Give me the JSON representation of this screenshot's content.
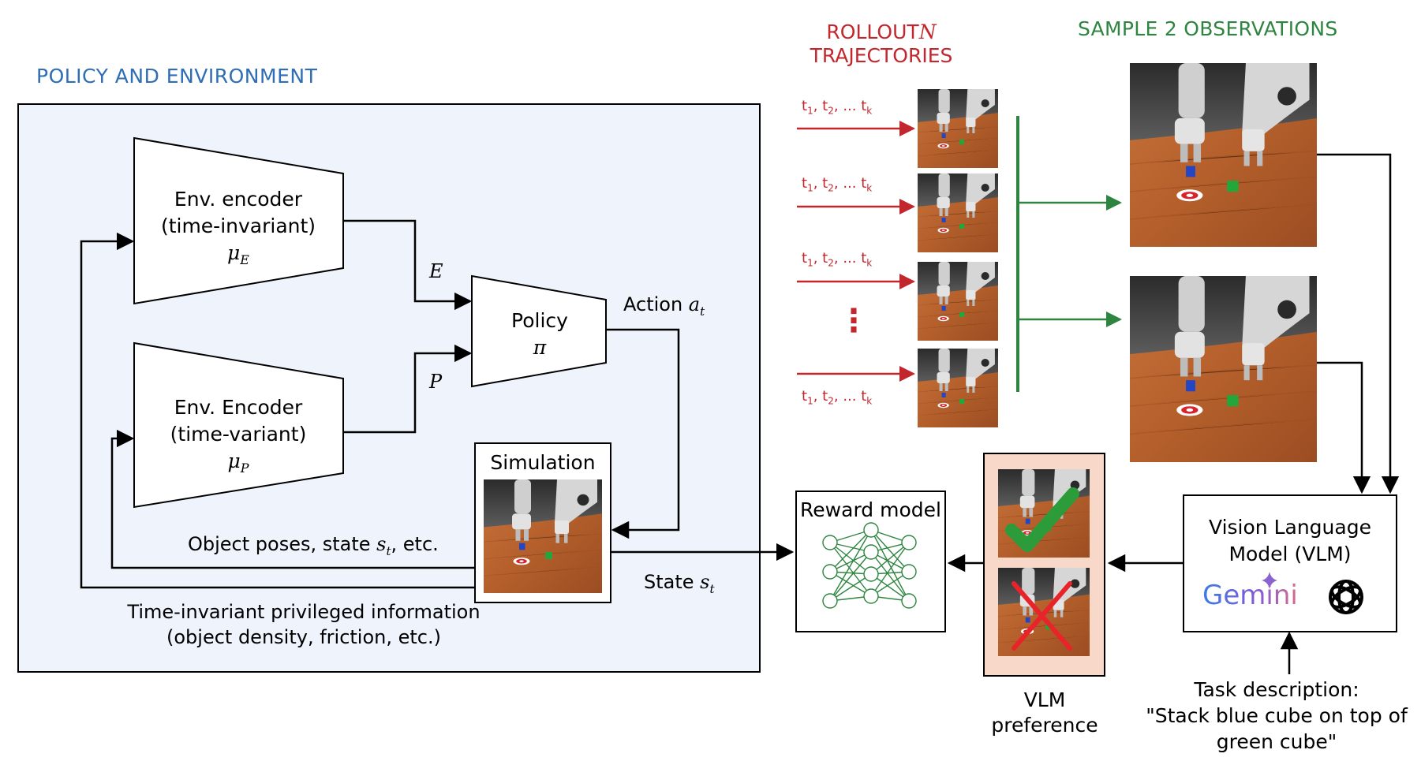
{
  "titles": {
    "policy_env": "POLICY AND ENVIRONMENT",
    "rollout_line1": "ROLLOUT",
    "rollout_n": "N",
    "rollout_line2": "TRAJECTORIES",
    "sample": "SAMPLE 2 OBSERVATIONS"
  },
  "encoder_e": {
    "line1": "Env. encoder",
    "line2": "(time-invariant)",
    "symbol": "μ",
    "sub": "E"
  },
  "encoder_p": {
    "line1": "Env. Encoder",
    "line2": "(time-variant)",
    "symbol": "μ",
    "sub": "P"
  },
  "policy": {
    "line1": "Policy",
    "symbol": "π"
  },
  "simulation": {
    "label": "Simulation"
  },
  "labels": {
    "e": "E",
    "p": "P",
    "action": "Action ",
    "action_var": "a",
    "action_sub": "t",
    "obj_poses_pre": "Object poses, state ",
    "obj_poses_var": "s",
    "obj_poses_sub": "t",
    "obj_poses_post": ", etc.",
    "state": "State ",
    "state_var": "s",
    "state_sub": "t",
    "privileged_line1": "Time-invariant privileged information",
    "privileged_line2": "(object density, friction, etc.)"
  },
  "trajectories": [
    {
      "t1": "t",
      "s1": "1",
      "t2": "t",
      "s2": "2",
      "dots": "...",
      "tk": "t",
      "sk": "k"
    },
    {
      "t1": "t",
      "s1": "1",
      "t2": "t",
      "s2": "2",
      "dots": "...",
      "tk": "t",
      "sk": "k"
    },
    {
      "t1": "t",
      "s1": "1",
      "t2": "t",
      "s2": "2",
      "dots": "...",
      "tk": "t",
      "sk": "k"
    },
    {
      "t1": "t",
      "s1": "1",
      "t2": "t",
      "s2": "2",
      "dots": "...",
      "tk": "t",
      "sk": "k"
    }
  ],
  "vertical_dots": "⋮",
  "reward_model": {
    "label": "Reward model"
  },
  "vlm": {
    "line1": "Vision Language",
    "line2": "Model (VLM)",
    "gemini": "Gemini"
  },
  "vlm_preference": {
    "line1": "VLM",
    "line2": "preference"
  },
  "task": {
    "line1": "Task description:",
    "line2": "\"Stack blue cube on top of",
    "line3": "green cube\""
  },
  "colors": {
    "blue": "#2f6db5",
    "red": "#c1272d",
    "green": "#2e8540",
    "panel_bg": "#eef3fc",
    "pref_bg": "#f8d9c9"
  },
  "icons": [
    "checkmark-icon",
    "cross-icon",
    "neural-network-icon",
    "gemini-sparkle-icon",
    "openai-logo-icon"
  ]
}
